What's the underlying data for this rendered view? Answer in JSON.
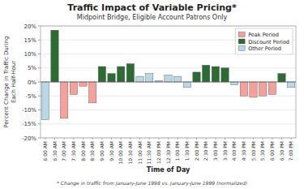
{
  "chart_data": {
    "type": "bar",
    "title": "Traffic Impact of Variable Pricing*",
    "subtitle": "Midpoint Bridge, Eligible Account Patrons Only",
    "x_label": "Time of Day",
    "y_label": "Percent Change in Traffic During\nEach Half-Hour",
    "footnote": "* Change in traffic from January-June 1998 vs. January-June 1999 (normalized)",
    "categories": [
      "6:00 AM",
      "6:30 AM",
      "7:00 AM",
      "7:30 AM",
      "8:00 AM",
      "8:30 AM",
      "9:00 AM",
      "9:30 AM",
      "10:00 AM",
      "10:30 AM",
      "11:00 AM",
      "11:30 AM",
      "12:00 PM",
      "12:30 PM",
      "1:00 PM",
      "1:30 PM",
      "2:00 PM",
      "2:30 PM",
      "3:00 PM",
      "3:30 PM",
      "4:00 PM",
      "4:30 PM",
      "5:00 PM",
      "5:30 PM",
      "6:00 PM",
      "6:30 PM",
      "7:00 PM"
    ],
    "series": [
      {
        "name": "Peak Period",
        "color": "#F5A09A",
        "values": [
          null,
          null,
          -13.0,
          -4.5,
          -1.5,
          -7.5,
          null,
          null,
          null,
          null,
          null,
          null,
          null,
          null,
          null,
          null,
          null,
          null,
          null,
          null,
          null,
          -5.0,
          -5.5,
          -5.0,
          -4.5,
          null,
          null
        ]
      },
      {
        "name": "Discount Period",
        "color": "#2D6B35",
        "values": [
          null,
          18.5,
          null,
          null,
          null,
          null,
          5.5,
          3.0,
          5.5,
          6.5,
          null,
          null,
          null,
          null,
          null,
          null,
          3.5,
          6.0,
          5.5,
          5.0,
          null,
          null,
          null,
          null,
          null,
          3.0,
          null
        ]
      },
      {
        "name": "Other Period",
        "color": "#B8D8E8",
        "values": [
          -13.5,
          null,
          null,
          null,
          null,
          null,
          null,
          null,
          null,
          null,
          2.0,
          3.0,
          0.5,
          2.5,
          2.0,
          -2.0,
          null,
          null,
          null,
          null,
          -1.0,
          null,
          null,
          null,
          null,
          null,
          -2.0
        ]
      }
    ],
    "stacked": true,
    "ylim": [
      -20,
      20
    ],
    "yticks": [
      {
        "value": -20,
        "label": "-20%"
      },
      {
        "value": -15,
        "label": "-15%"
      },
      {
        "value": -10,
        "label": "-10%"
      },
      {
        "value": -5,
        "label": "-5%"
      },
      {
        "value": 0,
        "label": "0%"
      },
      {
        "value": 5,
        "label": "5%"
      },
      {
        "value": 10,
        "label": "10%"
      },
      {
        "value": 15,
        "label": "15%"
      },
      {
        "value": 20,
        "label": "20%"
      }
    ],
    "grid": true,
    "legend": "upper right"
  }
}
